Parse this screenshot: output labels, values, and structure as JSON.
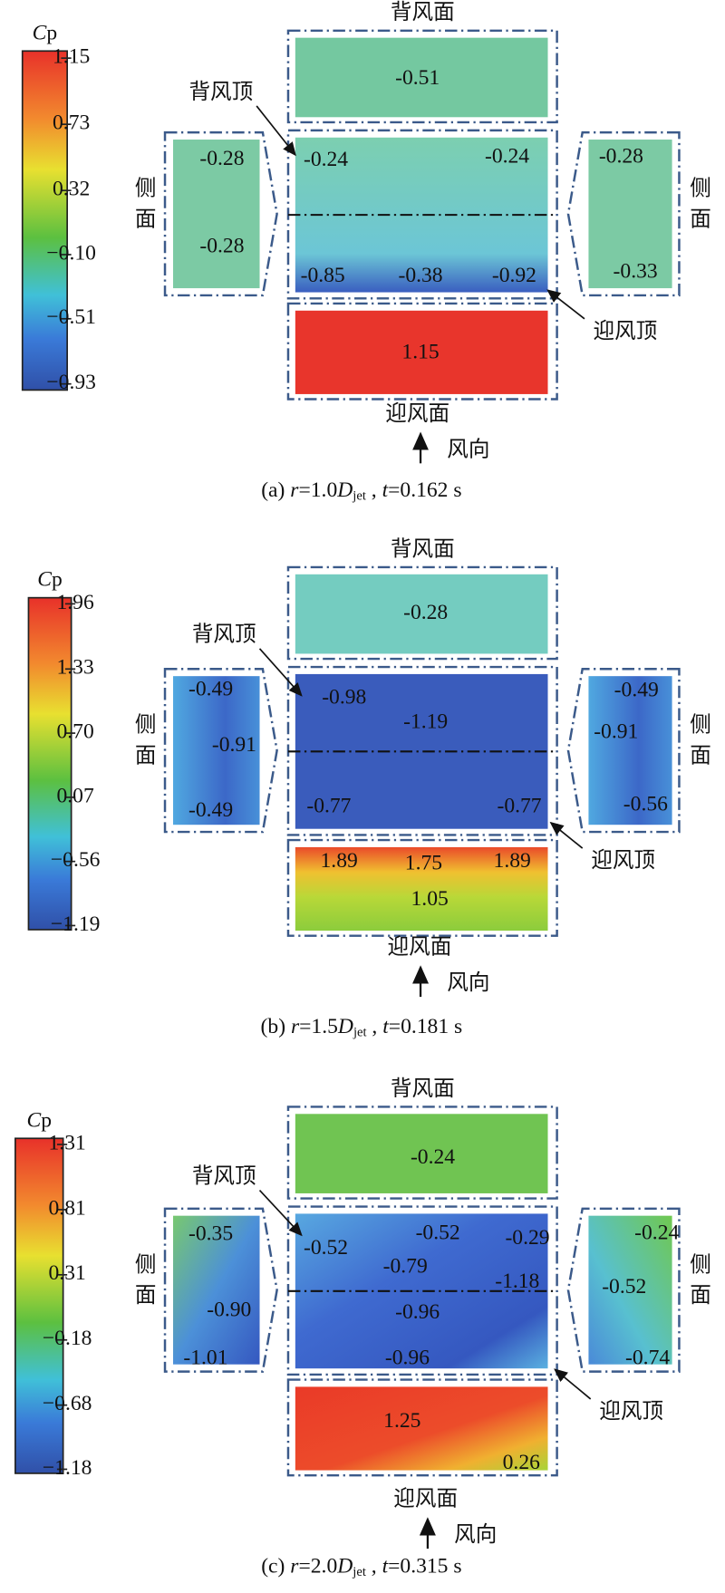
{
  "panels": [
    {
      "colorbar": {
        "title_c": "C",
        "title_p": "p",
        "ticks": [
          "1.15",
          "0.73",
          "0.32",
          "−0.10",
          "−0.51",
          "−0.93"
        ]
      },
      "leeward": {
        "label": "背风面",
        "values": [
          "-0.51"
        ]
      },
      "roof": {
        "values": [
          "-0.24",
          "-0.24",
          "-0.85",
          "-0.38",
          "-0.92"
        ]
      },
      "side_left": {
        "label": [
          "侧",
          "面"
        ],
        "values": [
          "-0.28",
          "-0.28"
        ]
      },
      "side_right": {
        "label": [
          "侧",
          "面"
        ],
        "values": [
          "-0.28",
          "-0.33"
        ]
      },
      "windward": {
        "label": "迎风面",
        "values": [
          "1.15"
        ]
      },
      "annotations": {
        "leeward_top": "背风顶",
        "windward_top": "迎风顶",
        "wind": "风向"
      },
      "caption": {
        "tag": "(a) ",
        "r": "r",
        "r_val": "=1.0",
        "D": "D",
        "sub": "jet",
        "sep": " , ",
        "t": "t",
        "t_val": "=0.162 s"
      }
    },
    {
      "colorbar": {
        "title_c": "C",
        "title_p": "p",
        "ticks": [
          "1.96",
          "1.33",
          "0.70",
          "0.07",
          "−0.56",
          "−1.19"
        ]
      },
      "leeward": {
        "label": "背风面",
        "values": [
          "-0.28"
        ]
      },
      "roof": {
        "values": [
          "-0.98",
          "-1.19",
          "-0.77",
          "-0.77"
        ]
      },
      "side_left": {
        "label": [
          "侧",
          "面"
        ],
        "values": [
          "-0.49",
          "-0.91",
          "-0.49"
        ]
      },
      "side_right": {
        "label": [
          "侧",
          "面"
        ],
        "values": [
          "-0.49",
          "-0.91",
          "-0.56"
        ]
      },
      "windward": {
        "label": "迎风面",
        "values": [
          "1.89",
          "1.75",
          "1.89",
          "1.05"
        ]
      },
      "annotations": {
        "leeward_top": "背风顶",
        "windward_top": "迎风顶",
        "wind": "风向"
      },
      "caption": {
        "tag": "(b) ",
        "r": "r",
        "r_val": "=1.5",
        "D": "D",
        "sub": "jet",
        "sep": " , ",
        "t": "t",
        "t_val": "=0.181 s"
      }
    },
    {
      "colorbar": {
        "title_c": "C",
        "title_p": "p",
        "ticks": [
          "1.31",
          "0.81",
          "0.31",
          "−0.18",
          "−0.68",
          "−1.18"
        ]
      },
      "leeward": {
        "label": "背风面",
        "values": [
          "-0.24"
        ]
      },
      "roof": {
        "values": [
          "-0.52",
          "-0.52",
          "-0.29",
          "-0.79",
          "-1.18",
          "-0.96",
          "-0.96"
        ]
      },
      "side_left": {
        "label": [
          "侧",
          "面"
        ],
        "values": [
          "-0.35",
          "-0.90",
          "-1.01"
        ]
      },
      "side_right": {
        "label": [
          "侧",
          "面"
        ],
        "values": [
          "-0.24",
          "-0.52",
          "-0.74"
        ]
      },
      "windward": {
        "label": "迎风面",
        "values": [
          "1.25",
          "0.26"
        ]
      },
      "annotations": {
        "leeward_top": "背风顶",
        "windward_top": "迎风顶",
        "wind": "风向"
      },
      "caption": {
        "tag": "(c) ",
        "r": "r",
        "r_val": "=2.0",
        "D": "D",
        "sub": "jet",
        "sep": " , ",
        "t": "t",
        "t_val": "=0.315 s"
      }
    }
  ]
}
